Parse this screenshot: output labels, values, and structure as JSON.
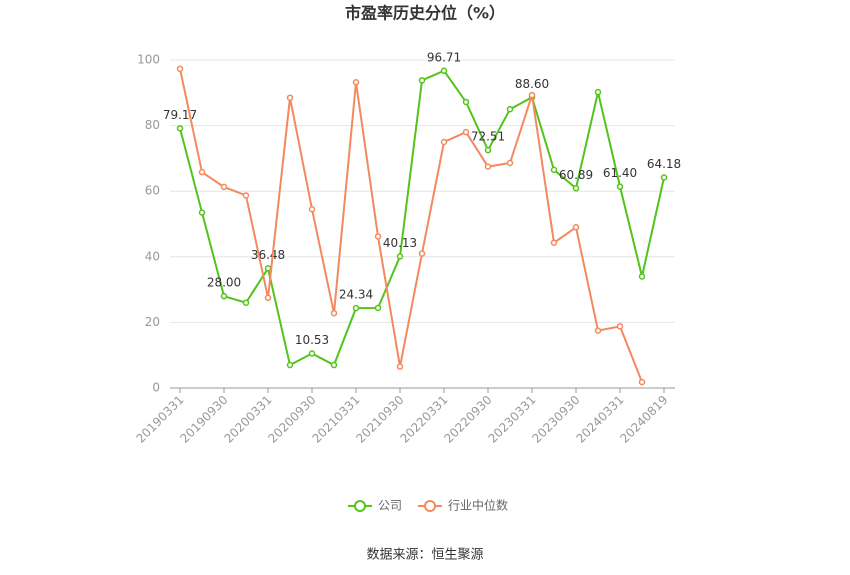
{
  "chart_data": {
    "type": "line",
    "title": "市盈率历史分位（%）",
    "categories": [
      "20190331",
      null,
      "20190930",
      null,
      "20200331",
      null,
      "20200930",
      null,
      "20210331",
      null,
      "20210930",
      null,
      "20220331",
      null,
      "20220930",
      null,
      "20230331",
      null,
      "20230930",
      null,
      "20240331",
      null,
      "20240819"
    ],
    "series": [
      {
        "name": "公司",
        "color": "#52c41a",
        "values": [
          79.17,
          53.5,
          28.0,
          26,
          36.48,
          7,
          10.53,
          7,
          24.34,
          24.4,
          40.13,
          93.8,
          96.71,
          87.2,
          72.51,
          85,
          88.6,
          66.5,
          60.89,
          90.2,
          61.4,
          34,
          64.18
        ],
        "value_labels": [
          "79.17",
          null,
          "28.00",
          null,
          "36.48",
          null,
          "10.53",
          null,
          "24.34",
          null,
          "40.13",
          null,
          "96.71",
          null,
          "72.51",
          null,
          "88.60",
          null,
          "60.89",
          null,
          "61.40",
          null,
          "64.18"
        ]
      },
      {
        "name": "行业中位数",
        "color": "#f4895f",
        "values": [
          97.3,
          65.8,
          61.3,
          58.7,
          27.5,
          88.5,
          54.5,
          22.8,
          93.2,
          46.2,
          6.5,
          41,
          75,
          78,
          67.5,
          68.6,
          89.3,
          44.3,
          49,
          17.5,
          18.8,
          1.8,
          null
        ]
      }
    ],
    "ylim": [
      0,
      100
    ],
    "yticks": [
      0,
      20,
      40,
      60,
      80,
      100
    ],
    "grid": true,
    "legend": "bottom",
    "source": "数据来源：恒生聚源"
  }
}
